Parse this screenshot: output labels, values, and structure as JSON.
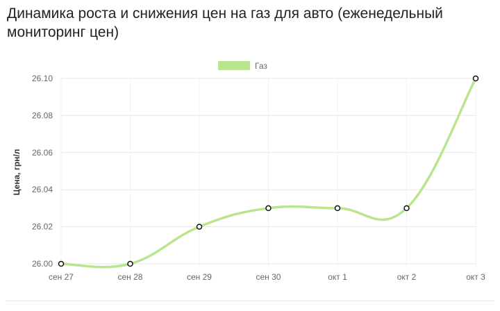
{
  "page": {
    "title": "Динамика роста и снижения цен на газ для авто (еженедельный мониторинг цен)"
  },
  "chart_data": {
    "type": "line",
    "title": "Динамика роста и снижения цен на газ для авто (еженедельный мониторинг цен)",
    "xlabel": "",
    "ylabel": "Цена, грн/л",
    "categories": [
      "сен 27",
      "сен 28",
      "сен 29",
      "сен 30",
      "окт 1",
      "окт 2",
      "окт 3"
    ],
    "series": [
      {
        "name": "Газ",
        "values": [
          26.0,
          26.0,
          26.02,
          26.03,
          26.03,
          26.03,
          26.1
        ]
      }
    ],
    "ylim": [
      26.0,
      26.1
    ],
    "yticks": [
      "26.00",
      "26.02",
      "26.04",
      "26.06",
      "26.08",
      "26.10"
    ],
    "grid": true,
    "legend": "top-center",
    "colors": {
      "line": "#b9e58f",
      "point_stroke": "#111111",
      "point_fill": "#ffffff",
      "grid": "#e6e6e6"
    }
  }
}
